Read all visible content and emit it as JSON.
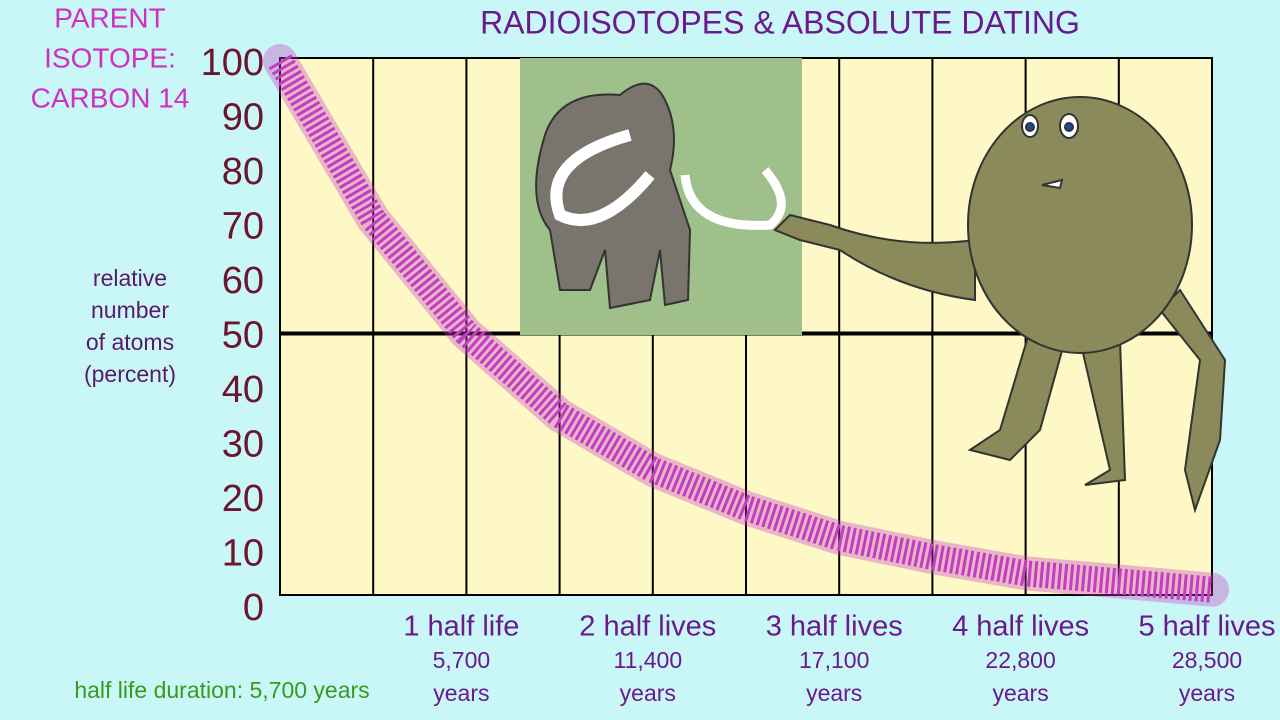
{
  "chart_data": {
    "type": "line",
    "title": "RADIOISOTOPES & ABSOLUTE DATING",
    "parent_label": [
      "PARENT",
      "ISOTOPE:",
      "CARBON 14"
    ],
    "y_label": [
      "relative",
      "number",
      "of atoms",
      "(percent)"
    ],
    "footer": "half life duration: 5,700 years",
    "xlim": [
      0,
      5
    ],
    "xticks": [
      {
        "value": 1,
        "label": "1 half life"
      },
      {
        "value": 2,
        "label": "2 half lives"
      },
      {
        "value": 3,
        "label": "3 half lives"
      },
      {
        "value": 4,
        "label": "4 half lives"
      },
      {
        "value": 5,
        "label": "5 half lives"
      }
    ],
    "ages": [
      [
        "5,700",
        "years"
      ],
      [
        "11,400",
        "years"
      ],
      [
        "17,100",
        "years"
      ],
      [
        "22,800",
        "years"
      ],
      [
        "28,500",
        "years"
      ]
    ],
    "ylim": [
      0,
      100
    ],
    "yticks": [
      0,
      10,
      20,
      30,
      40,
      50,
      60,
      70,
      80,
      90,
      100
    ],
    "reference_line": 50,
    "series": [
      {
        "color": "#c23cc4",
        "x": [
          0,
          0.5,
          1,
          1.5,
          2,
          2.5,
          3,
          3.5,
          4,
          4.5,
          5
        ],
        "values": [
          100,
          71,
          50,
          35,
          25,
          18,
          12.5,
          9,
          6,
          4.5,
          3
        ]
      }
    ]
  }
}
